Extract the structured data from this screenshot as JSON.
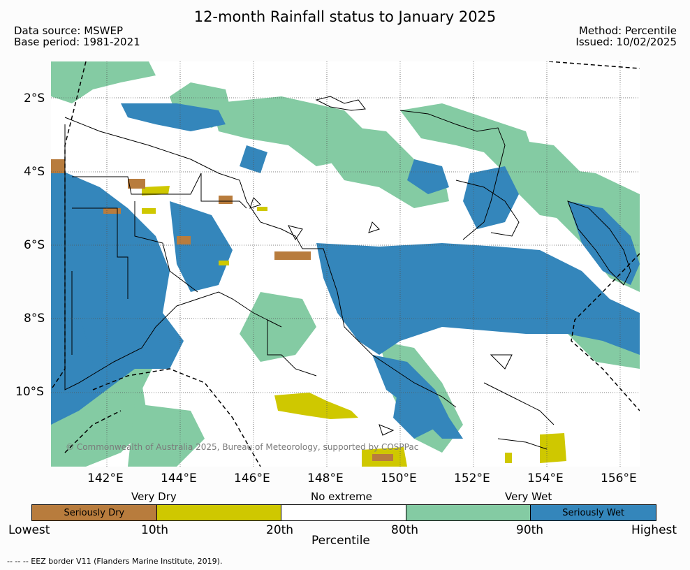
{
  "title": "12-month Rainfall status to January 2025",
  "data_source": "Data source: MSWEP",
  "base_period": "Base period: 1981-2021",
  "method": "Method: Percentile",
  "issued": "Issued: 10/02/2025",
  "map": {
    "lat_labels": [
      "2°S",
      "4°S",
      "6°S",
      "8°S",
      "10°S"
    ],
    "lon_labels": [
      "142°E",
      "144°E",
      "146°E",
      "148°E",
      "150°E",
      "152°E",
      "154°E",
      "156°E"
    ],
    "copyright": "© Commonwealth of Australia 2025, Bureau of Meteorology, supported by COSPPac",
    "colors": {
      "seriously_dry": "#b87c3d",
      "very_dry": "#cfc800",
      "very_wet": "#84cba3",
      "seriously_wet": "#3486bb",
      "no_extreme": "#ffffff"
    }
  },
  "legend": {
    "category_headers": {
      "very_dry": "Very Dry",
      "no_extreme": "No extreme",
      "very_wet": "Very Wet"
    },
    "segments": [
      {
        "label": "Seriously Dry",
        "color": "#b87c3d"
      },
      {
        "label": "",
        "color": "#cfc800"
      },
      {
        "label": "",
        "color": "#ffffff"
      },
      {
        "label": "",
        "color": "#84cba3"
      },
      {
        "label": "Seriously Wet",
        "color": "#3486bb"
      }
    ],
    "ticks": [
      "Lowest",
      "10th",
      "20th",
      "80th",
      "90th",
      "Highest"
    ],
    "axis_title": "Percentile"
  },
  "footnote": "--  --  -- EEZ border V11 (Flanders Marine Institute, 2019)."
}
